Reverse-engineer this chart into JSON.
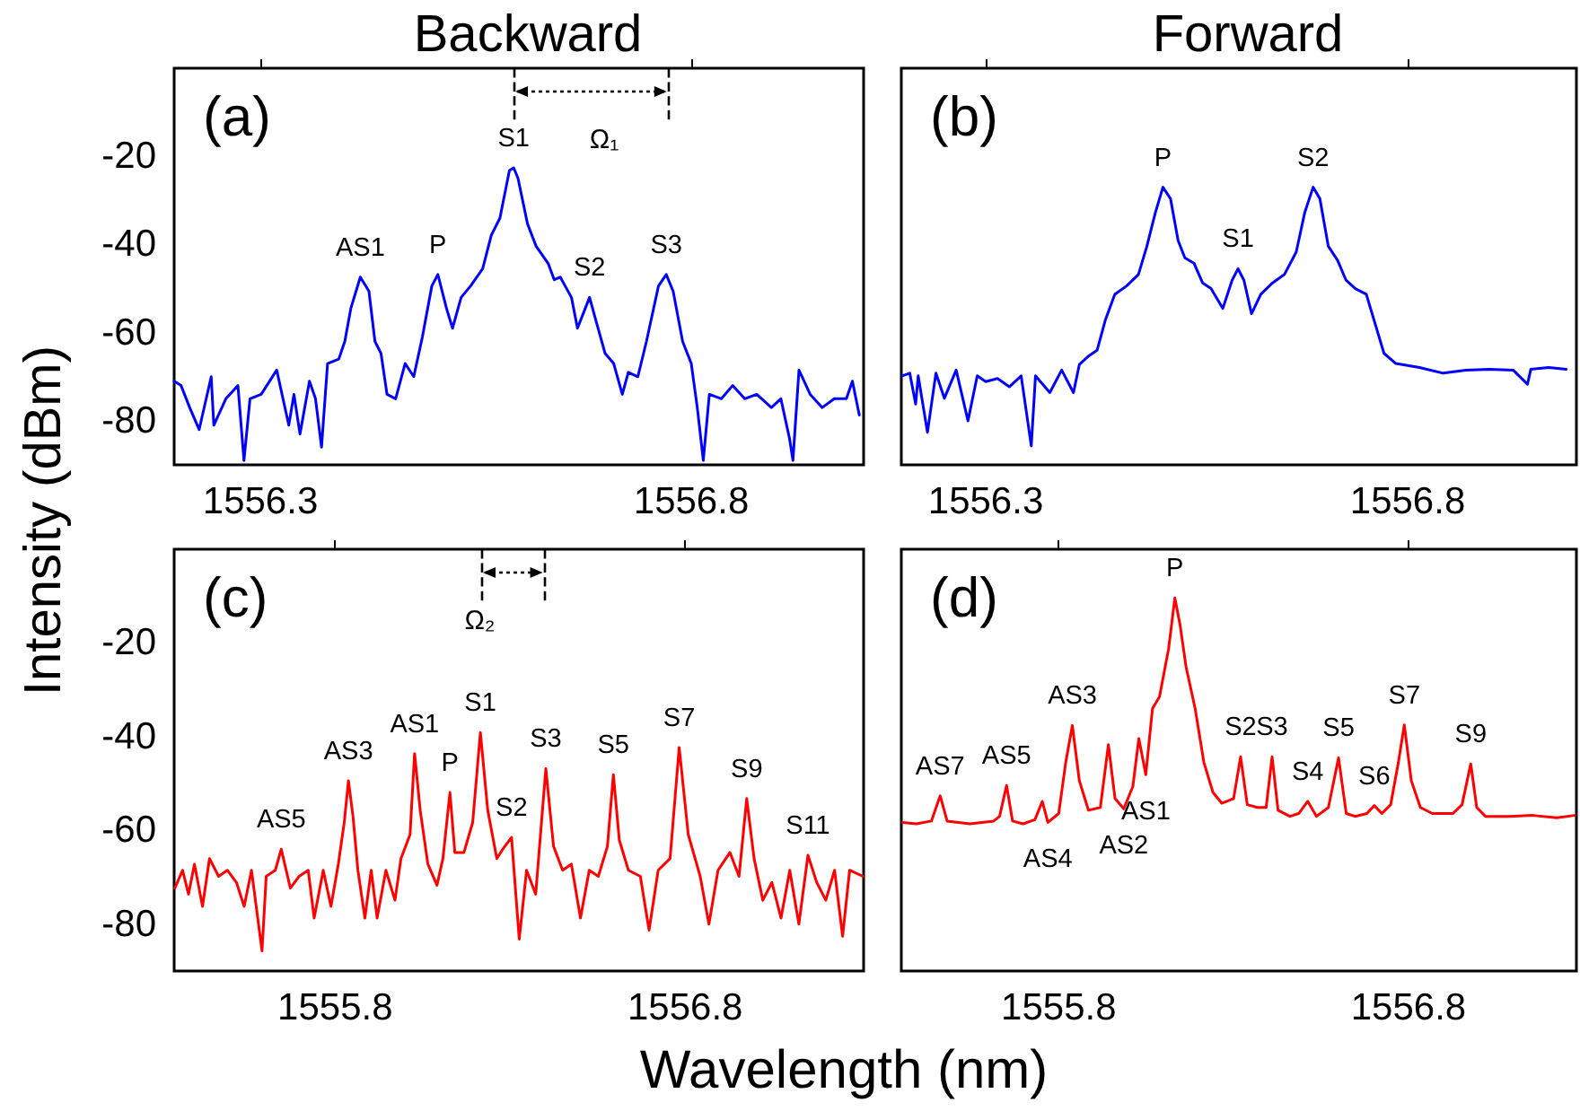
{
  "chart_data": [
    {
      "type": "line",
      "title": "Backward",
      "ylabel": "Intensity (dBm)",
      "x": [
        1556.2,
        1556.208,
        1556.218,
        1556.229,
        1556.243,
        1556.246,
        1556.26,
        1556.274,
        1556.281,
        1556.288,
        1556.301,
        1556.319,
        1556.333,
        1556.339,
        1556.346,
        1556.357,
        1556.364,
        1556.371,
        1556.378,
        1556.391,
        1556.398,
        1556.405,
        1556.416,
        1556.426,
        1556.433,
        1556.44,
        1556.447,
        1556.457,
        1556.468,
        1556.478,
        1556.488,
        1556.499,
        1556.506,
        1556.516,
        1556.523,
        1556.533,
        1556.544,
        1556.558,
        1556.568,
        1556.578,
        1556.589,
        1556.594,
        1556.599,
        1556.61,
        1556.62,
        1556.634,
        1556.641,
        1556.648,
        1556.661,
        1556.668,
        1556.682,
        1556.689,
        1556.7,
        1556.71,
        1556.72,
        1556.727,
        1556.738,
        1556.748,
        1556.762,
        1556.771,
        1556.779,
        1556.79,
        1556.8,
        1556.807,
        1556.814,
        1556.821,
        1556.835,
        1556.848,
        1556.862,
        1556.876,
        1556.893,
        1556.904,
        1556.914,
        1556.918,
        1556.925,
        1556.938,
        1556.952,
        1556.966,
        1556.98,
        1556.987,
        1556.995
      ],
      "series": [
        {
          "color": "#0000ff",
          "values": [
            -71,
            -72,
            -77,
            -82,
            -70,
            -81,
            -75,
            -72,
            -89,
            -75,
            -74,
            -68.5,
            -81,
            -74,
            -83,
            -71,
            -75,
            -86,
            -67,
            -66,
            -62,
            -54.5,
            -47.4,
            -50.6,
            -62,
            -64.7,
            -74,
            -75,
            -67,
            -70,
            -61,
            -49.4,
            -46.8,
            -54.5,
            -59,
            -52,
            -49.4,
            -45.5,
            -37.9,
            -34,
            -23.2,
            -22.6,
            -25,
            -35.3,
            -40.4,
            -44.3,
            -48,
            -47.4,
            -52,
            -59,
            -52,
            -57,
            -64.7,
            -67,
            -74,
            -69,
            -70,
            -62,
            -49.4,
            -46.8,
            -50.6,
            -62,
            -67,
            -77,
            -89,
            -74,
            -75,
            -72,
            -75,
            -74,
            -77,
            -75,
            -84,
            -89,
            -68.5,
            -74,
            -77,
            -75,
            -75,
            -71,
            -78.7
          ]
        }
      ],
      "xlim": [
        1556.2,
        1557.0
      ],
      "ylim": [
        -90,
        0
      ],
      "xticks": [
        1556.3,
        1556.8
      ],
      "yticks": [
        -80,
        -60,
        -40,
        -20
      ],
      "annotations": [
        "(a)",
        {
          "text": "AS1",
          "x": 1556.416,
          "y": -47.4
        },
        {
          "text": "P",
          "x": 1556.506,
          "y": -46.8
        },
        {
          "text": "S1",
          "x": 1556.594,
          "y": -22.6
        },
        {
          "text": "S2",
          "x": 1556.682,
          "y": -52
        },
        {
          "text": "S3",
          "x": 1556.771,
          "y": -46.8
        }
      ],
      "ref_lines": [
        {
          "axis": "x",
          "value": 1556.594,
          "line_style": "dashed",
          "color": "#000000"
        },
        {
          "axis": "x",
          "value": 1556.774,
          "line_style": "dashed",
          "color": "#000000",
          "label": "Ω₁"
        }
      ]
    },
    {
      "type": "line",
      "title": "Forward",
      "tick_labels": "x",
      "x": [
        1556.201,
        1556.21,
        1556.217,
        1556.22,
        1556.231,
        1556.241,
        1556.251,
        1556.265,
        1556.279,
        1556.29,
        1556.3,
        1556.314,
        1556.328,
        1556.342,
        1556.354,
        1556.359,
        1556.376,
        1556.39,
        1556.404,
        1556.411,
        1556.422,
        1556.432,
        1556.442,
        1556.453,
        1556.467,
        1556.481,
        1556.491,
        1556.501,
        1556.51,
        1556.519,
        1556.528,
        1556.536,
        1556.547,
        1556.557,
        1556.567,
        1556.581,
        1556.592,
        1556.599,
        1556.606,
        1556.615,
        1556.626,
        1556.64,
        1556.654,
        1556.668,
        1556.678,
        1556.688,
        1556.696,
        1556.706,
        1556.717,
        1556.727,
        1556.738,
        1556.751,
        1556.762,
        1556.772,
        1556.786,
        1556.814,
        1556.842,
        1556.869,
        1556.897,
        1556.925,
        1556.942,
        1556.946,
        1556.967,
        1556.988
      ],
      "series": [
        {
          "color": "#0000ff",
          "values": [
            -69.8,
            -69.2,
            -76.2,
            -69.8,
            -82.6,
            -69.2,
            -74.9,
            -68.5,
            -80,
            -69.8,
            -71.1,
            -70.4,
            -72.3,
            -69.8,
            -85.7,
            -69.8,
            -73.6,
            -68.5,
            -73.6,
            -67.2,
            -65.3,
            -64,
            -57,
            -51.3,
            -49.4,
            -46.8,
            -40.4,
            -32.8,
            -27,
            -29.6,
            -39.1,
            -43,
            -44.3,
            -48.7,
            -50,
            -54.5,
            -48.1,
            -45.5,
            -48.1,
            -55.7,
            -51.3,
            -48.7,
            -46.8,
            -41.7,
            -32.8,
            -27,
            -29.6,
            -40.4,
            -43.6,
            -48.1,
            -50,
            -51.3,
            -58.3,
            -64.7,
            -67,
            -67.9,
            -69.2,
            -68.5,
            -68.3,
            -68.5,
            -71.7,
            -68.3,
            -67.9,
            -68.3
          ]
        }
      ],
      "xlim": [
        1556.2,
        1557.0
      ],
      "ylim": [
        -90,
        0
      ],
      "xticks": [
        1556.3,
        1556.8
      ],
      "yticks": [
        -80,
        -60,
        -40,
        -20
      ],
      "annotations": [
        "(b)",
        {
          "text": "P",
          "x": 1556.51,
          "y": -27
        },
        {
          "text": "S1",
          "x": 1556.599,
          "y": -45.5
        },
        {
          "text": "S2",
          "x": 1556.688,
          "y": -27
        }
      ]
    },
    {
      "type": "line",
      "xlabel": "Wavelength (nm)",
      "x": [
        1555.342,
        1555.364,
        1555.381,
        1555.398,
        1555.421,
        1555.441,
        1555.467,
        1555.492,
        1555.518,
        1555.54,
        1555.561,
        1555.591,
        1555.603,
        1555.629,
        1555.646,
        1555.672,
        1555.697,
        1555.723,
        1555.74,
        1555.766,
        1555.788,
        1555.809,
        1555.826,
        1555.838,
        1555.851,
        1555.865,
        1555.885,
        1555.903,
        1555.92,
        1555.945,
        1555.971,
        1555.988,
        1556.014,
        1556.027,
        1556.043,
        1556.065,
        1556.091,
        1556.108,
        1556.128,
        1556.142,
        1556.168,
        1556.193,
        1556.215,
        1556.236,
        1556.262,
        1556.279,
        1556.304,
        1556.326,
        1556.347,
        1556.373,
        1556.402,
        1556.424,
        1556.45,
        1556.475,
        1556.501,
        1556.526,
        1556.552,
        1556.578,
        1556.595,
        1556.612,
        1556.638,
        1556.672,
        1556.697,
        1556.723,
        1556.757,
        1556.783,
        1556.809,
        1556.843,
        1556.868,
        1556.894,
        1556.928,
        1556.954,
        1556.976,
        1556.997,
        1557.022,
        1557.048,
        1557.074,
        1557.099,
        1557.125,
        1557.151,
        1557.176,
        1557.202,
        1557.227,
        1557.25,
        1557.27,
        1557.308
      ],
      "series": [
        {
          "color": "#ff0000",
          "values": [
            -72.3,
            -68.5,
            -73.6,
            -67.2,
            -76.2,
            -66,
            -69.8,
            -68.5,
            -71.1,
            -76.2,
            -68.5,
            -85.7,
            -69.8,
            -68.5,
            -64,
            -72.3,
            -69.8,
            -68.5,
            -78.7,
            -68.5,
            -76.2,
            -67.2,
            -58.3,
            -49.4,
            -57,
            -68.5,
            -78.7,
            -68.5,
            -78.7,
            -68.5,
            -74.9,
            -66,
            -60.9,
            -43.6,
            -55.7,
            -67.2,
            -71.7,
            -66,
            -51.9,
            -64.7,
            -64.7,
            -58.3,
            -39.1,
            -55.7,
            -66,
            -64,
            -61.5,
            -83.2,
            -68.5,
            -73.6,
            -46.8,
            -63.4,
            -68.5,
            -67.2,
            -78.7,
            -68.5,
            -69.8,
            -63.4,
            -48.1,
            -62.1,
            -68.5,
            -69.8,
            -81.3,
            -68.5,
            -66,
            -42.3,
            -60.9,
            -69.8,
            -80,
            -68.5,
            -64.7,
            -69.8,
            -53.2,
            -66,
            -74.9,
            -71.1,
            -78.7,
            -68.5,
            -80,
            -65.3,
            -71.1,
            -74.9,
            -68.5,
            -82.6,
            -68.5,
            -69.8
          ]
        }
      ],
      "xlim": [
        1555.34,
        1557.31
      ],
      "ylim": [
        -90,
        0
      ],
      "xticks": [
        1555.8,
        1556.8
      ],
      "yticks": [
        -80,
        -60,
        -40,
        -20
      ],
      "annotations": [
        "(c)",
        {
          "text": "AS5",
          "x": 1555.646,
          "y": -64
        },
        {
          "text": "AS3",
          "x": 1555.838,
          "y": -49.4
        },
        {
          "text": "AS1",
          "x": 1556.027,
          "y": -43.6
        },
        {
          "text": "P",
          "x": 1556.128,
          "y": -51.9
        },
        {
          "text": "S1",
          "x": 1556.215,
          "y": -39.1
        },
        {
          "text": "S2",
          "x": 1556.304,
          "y": -61.5
        },
        {
          "text": "S3",
          "x": 1556.402,
          "y": -46.8
        },
        {
          "text": "S5",
          "x": 1556.595,
          "y": -48.1
        },
        {
          "text": "S7",
          "x": 1556.783,
          "y": -42.3
        },
        {
          "text": "S9",
          "x": 1556.976,
          "y": -53.2
        },
        {
          "text": "S11",
          "x": 1557.151,
          "y": -65.3
        }
      ],
      "ref_lines": [
        {
          "axis": "x",
          "value": 1556.217,
          "line_style": "dashed",
          "color": "#000000"
        },
        {
          "axis": "x",
          "value": 1556.398,
          "line_style": "dashed",
          "color": "#000000",
          "label": "Ω₂"
        }
      ]
    },
    {
      "type": "line",
      "tick_labels": "x",
      "x": [
        1555.354,
        1555.393,
        1555.436,
        1555.461,
        1555.481,
        1555.546,
        1555.614,
        1555.631,
        1555.651,
        1555.668,
        1555.698,
        1555.732,
        1555.753,
        1555.769,
        1555.8,
        1555.82,
        1555.839,
        1555.859,
        1555.885,
        1555.919,
        1555.942,
        1555.961,
        1555.986,
        1556.012,
        1556.029,
        1556.049,
        1556.068,
        1556.088,
        1556.114,
        1556.132,
        1556.147,
        1556.164,
        1556.19,
        1556.215,
        1556.241,
        1556.266,
        1556.3,
        1556.32,
        1556.339,
        1556.368,
        1556.393,
        1556.41,
        1556.427,
        1556.461,
        1556.486,
        1556.512,
        1556.537,
        1556.571,
        1556.6,
        1556.622,
        1556.647,
        1556.681,
        1556.702,
        1556.724,
        1556.749,
        1556.771,
        1556.788,
        1556.808,
        1556.834,
        1556.868,
        1556.927,
        1556.953,
        1556.978,
        1556.995,
        1557.02,
        1557.088,
        1557.156,
        1557.224,
        1557.275
      ],
      "series": [
        {
          "color": "#ff0000",
          "values": [
            -58.3,
            -58.6,
            -58.0,
            -52.6,
            -58.0,
            -58.6,
            -58.0,
            -57,
            -50.4,
            -58.0,
            -58.6,
            -57.7,
            -53.8,
            -58.3,
            -56.4,
            -45.5,
            -37.6,
            -49.4,
            -55.7,
            -55.1,
            -41.7,
            -53.2,
            -55.4,
            -50.6,
            -40.4,
            -48.1,
            -34,
            -31.5,
            -21.3,
            -10.4,
            -16.2,
            -25.1,
            -34,
            -45.5,
            -51.9,
            -54.2,
            -53.2,
            -44.3,
            -54.5,
            -55.1,
            -55.1,
            -44.3,
            -55.7,
            -57,
            -56.4,
            -53.8,
            -57,
            -55.1,
            -44.5,
            -56.4,
            -57,
            -56.4,
            -54.7,
            -56.4,
            -54.5,
            -45.5,
            -37.5,
            -49.4,
            -55.1,
            -56.4,
            -56.4,
            -54.5,
            -45.8,
            -55.1,
            -57,
            -57,
            -56.8,
            -57.3,
            -56.8
          ]
        }
      ],
      "xlim": [
        1555.35,
        1557.28
      ],
      "ylim": [
        -90,
        0
      ],
      "xticks": [
        1555.8,
        1556.8
      ],
      "yticks": [
        -80,
        -60,
        -40,
        -20
      ],
      "annotations": [
        "(d)",
        {
          "text": "P",
          "x": 1556.132,
          "y": -10.4
        },
        {
          "text": "AS7",
          "x": 1555.461,
          "y": -52.6
        },
        {
          "text": "AS5",
          "x": 1555.651,
          "y": -50.4
        },
        {
          "text": "AS4",
          "x": 1555.769,
          "y": -58.3
        },
        {
          "text": "AS3",
          "x": 1555.839,
          "y": -37.6
        },
        {
          "text": "AS2",
          "x": 1555.986,
          "y": -55.4
        },
        {
          "text": "AS1",
          "x": 1556.049,
          "y": -48.1
        },
        {
          "text": "S2",
          "x": 1556.32,
          "y": -44.3
        },
        {
          "text": "S3",
          "x": 1556.41,
          "y": -44.3
        },
        {
          "text": "S4",
          "x": 1556.512,
          "y": -53.8
        },
        {
          "text": "S5",
          "x": 1556.6,
          "y": -44.5
        },
        {
          "text": "S6",
          "x": 1556.702,
          "y": -54.7
        },
        {
          "text": "S7",
          "x": 1556.788,
          "y": -37.5
        },
        {
          "text": "S9",
          "x": 1556.978,
          "y": -45.8
        }
      ]
    }
  ]
}
